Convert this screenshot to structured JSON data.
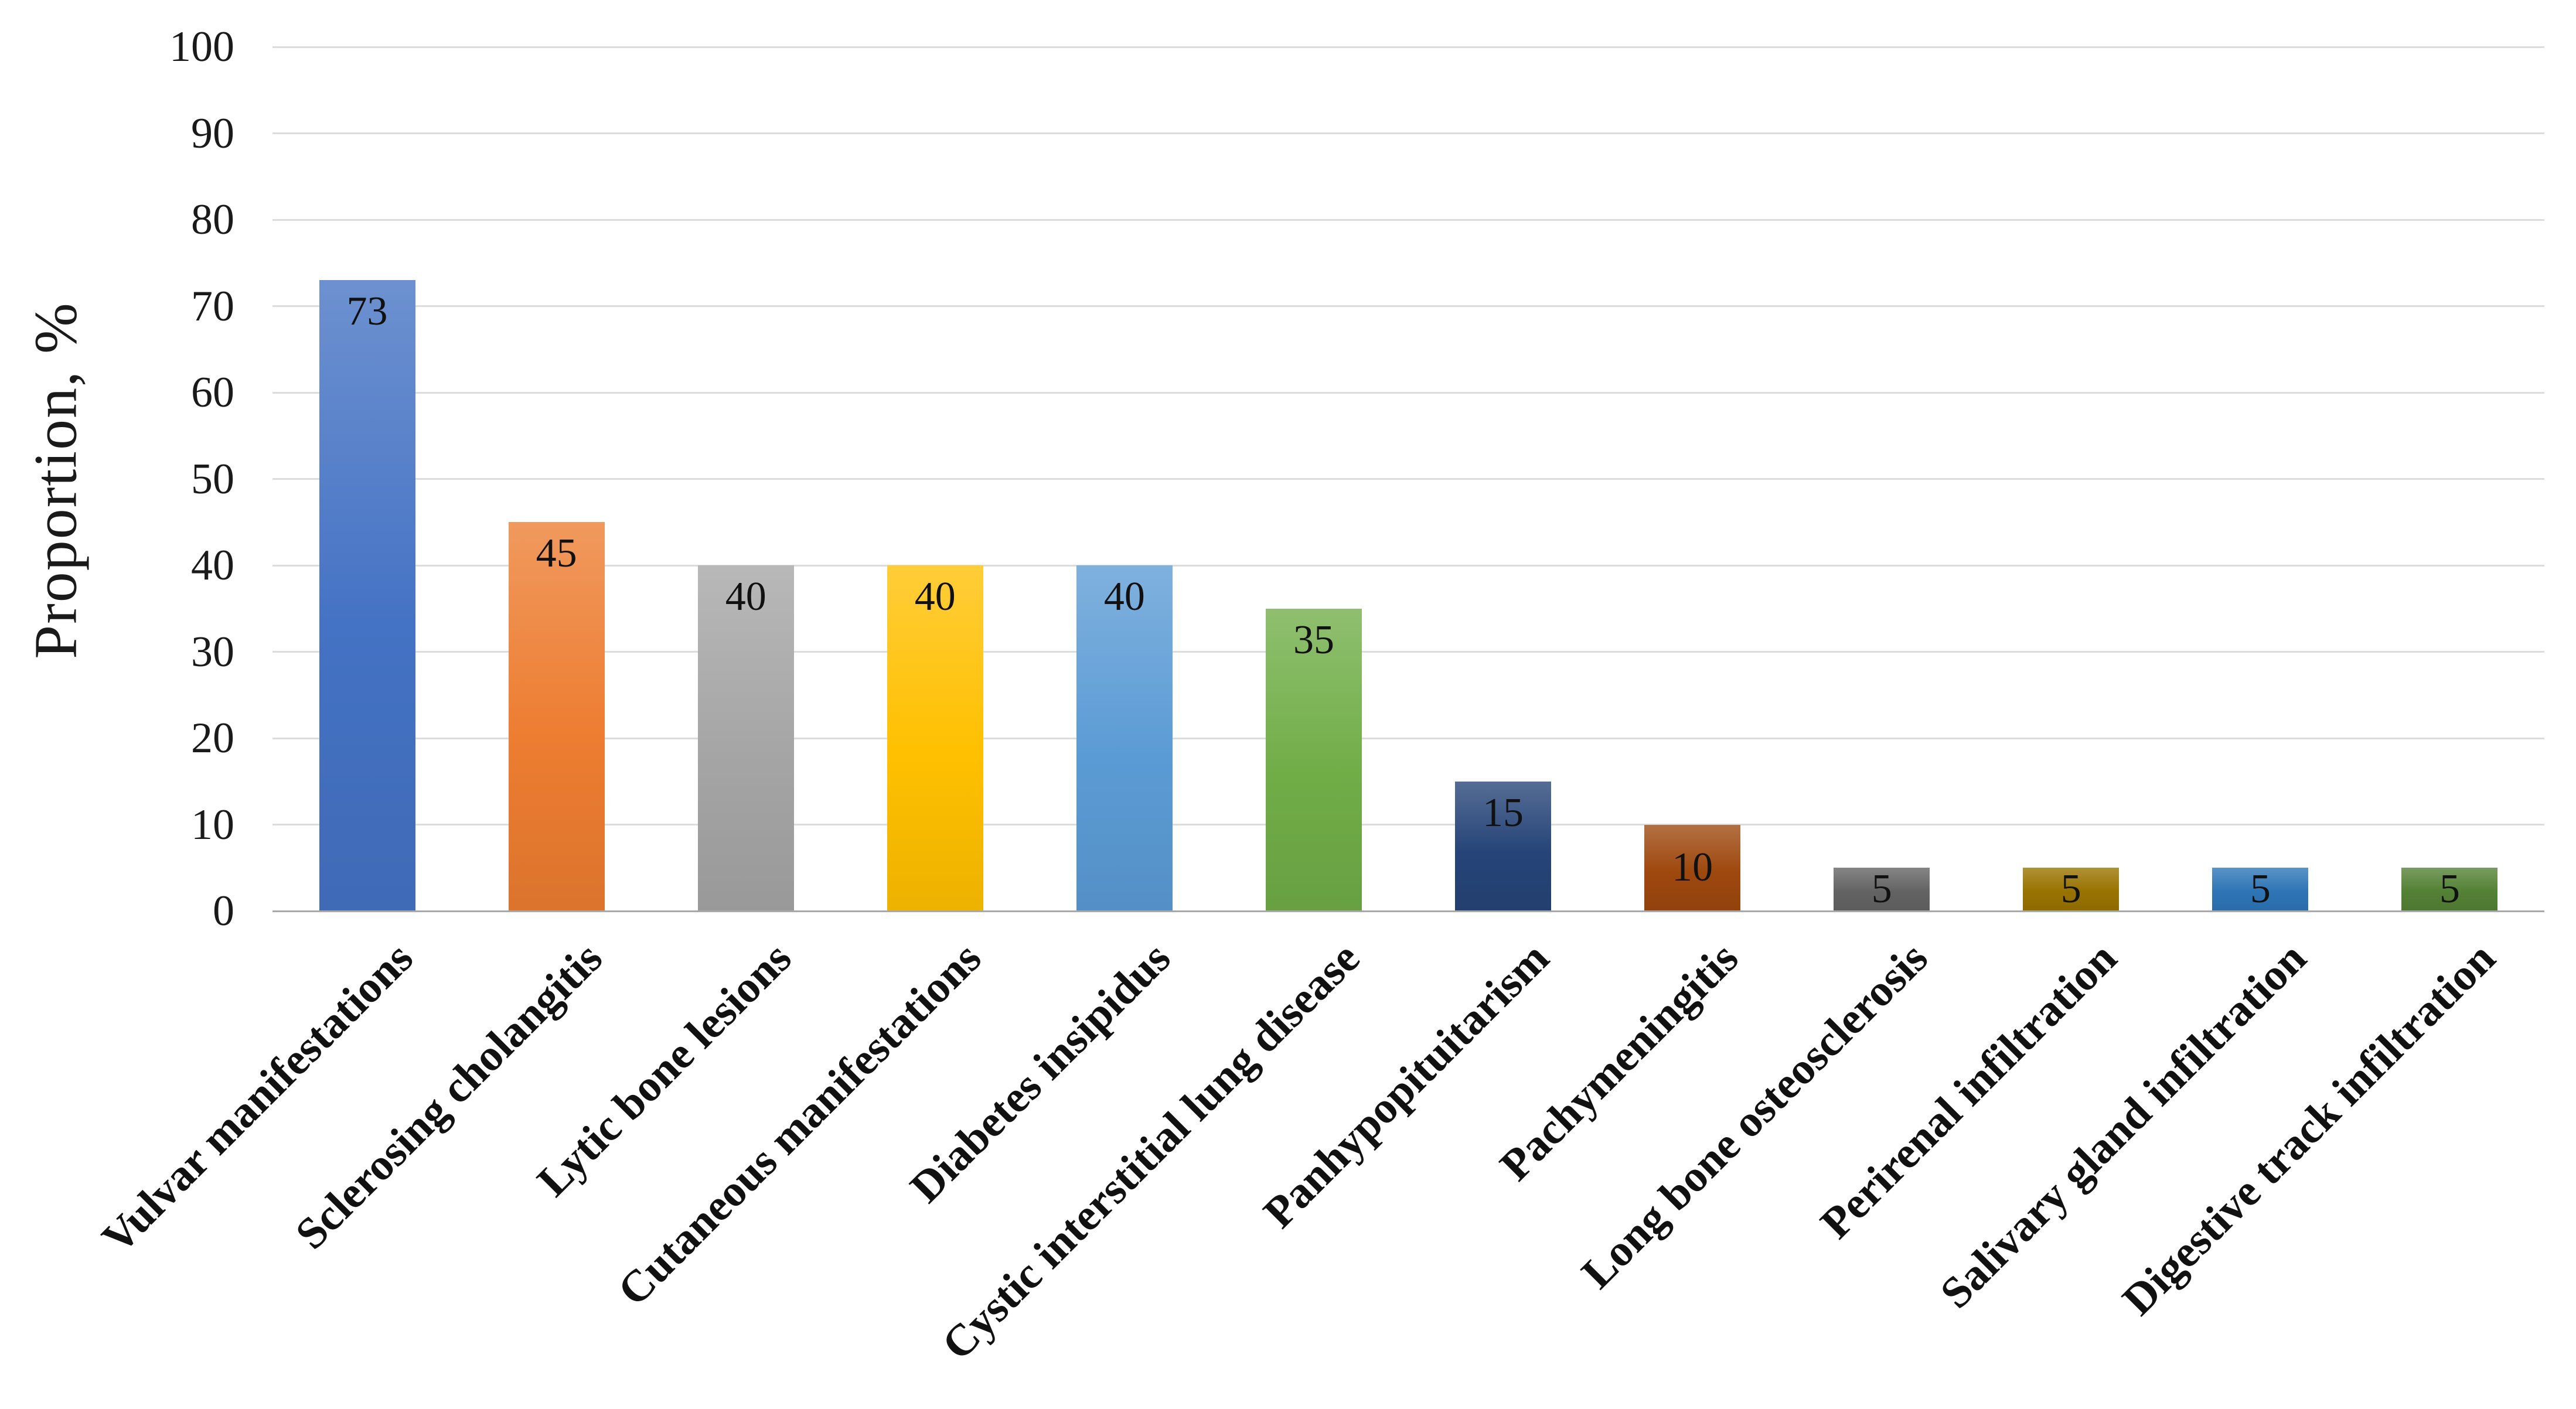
{
  "chart_data": {
    "type": "bar",
    "title": "",
    "xlabel": "",
    "ylabel": "Proportion, %",
    "ylim": [
      0,
      100
    ],
    "ytick_step": 10,
    "yticks": [
      0,
      10,
      20,
      30,
      40,
      50,
      60,
      70,
      80,
      90,
      100
    ],
    "grid": "horizontal",
    "legend": "none",
    "categories": [
      "Vulvar manifestations",
      "Sclerosing cholangitis",
      "Lytic bone lesions",
      "Cutaneous manifestations",
      "Diabetes insipidus",
      "Cystic interstitial lung disease",
      "Panhypopituitarism",
      "Pachymeningitis",
      "Long bone osteosclerosis",
      "Perirenal infiltration",
      "Salivary gland infiltration",
      "Digestive track infiltration"
    ],
    "values": [
      73,
      45,
      40,
      40,
      40,
      35,
      15,
      10,
      5,
      5,
      5,
      5
    ],
    "value_labels": [
      "73",
      "45",
      "40",
      "40",
      "40",
      "35",
      "15",
      "10",
      "5",
      "5",
      "5",
      "5"
    ],
    "colors": [
      "#4472C4",
      "#ED7D31",
      "#A5A5A5",
      "#FFC000",
      "#5B9BD5",
      "#70AD47",
      "#264478",
      "#9E480E",
      "#636363",
      "#997300",
      "#2E75B6",
      "#538135"
    ],
    "gridline_color": "#dcdcdc",
    "axis_line_color": "#a9a9a9",
    "text_color": "#111111"
  }
}
